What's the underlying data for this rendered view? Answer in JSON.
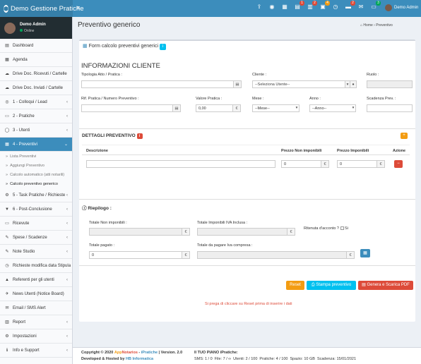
{
  "app": {
    "brand": "Demo Gestione Pratiche",
    "logo": "hexagon-logo-icon"
  },
  "topbar": {
    "icons": [
      {
        "name": "upload-icon",
        "glyph": "⇪",
        "badge": "",
        "color": ""
      },
      {
        "name": "eye-icon",
        "glyph": "◉",
        "badge": "",
        "color": ""
      },
      {
        "name": "calendar-icon",
        "glyph": "▦",
        "badge": "",
        "color": ""
      },
      {
        "name": "clipboard-icon",
        "glyph": "▤",
        "badge": "1",
        "color": "#dd4b39"
      },
      {
        "name": "notes-icon",
        "glyph": "▥",
        "badge": "2",
        "color": "#dd4b39"
      },
      {
        "name": "calendar-check-icon",
        "glyph": "▣",
        "badge": "4",
        "color": "#f39c12"
      },
      {
        "name": "clock-icon",
        "glyph": "◷",
        "badge": "",
        "color": ""
      },
      {
        "name": "folder-icon",
        "glyph": "▬",
        "badge": "2",
        "color": "#dd4b39"
      },
      {
        "name": "envelope-icon",
        "glyph": "✉",
        "badge": "",
        "color": ""
      },
      {
        "name": "chat-icon",
        "glyph": "▭",
        "badge": "3",
        "color": "#00a65a"
      }
    ],
    "user": "Demo Admin"
  },
  "sidebar": {
    "user": {
      "name": "Demo Admin",
      "status": "Online"
    },
    "items": [
      {
        "label": "Dashboard",
        "icon": "▤",
        "chev": ""
      },
      {
        "label": "Agenda",
        "icon": "▦",
        "chev": ""
      },
      {
        "label": "Drive Doc. Ricevuti / Cartelle",
        "icon": "☁",
        "chev": ""
      },
      {
        "label": "Drive Doc. Inviati / Cartelle",
        "icon": "☁",
        "chev": ""
      },
      {
        "label": "1 - Colloqui / Lead",
        "icon": "◎",
        "chev": "‹"
      },
      {
        "label": "2 - Pratiche",
        "icon": "▭",
        "chev": "‹"
      },
      {
        "label": "3 - Utenti",
        "icon": "◯",
        "chev": "‹"
      },
      {
        "label": "4 - Preventivi",
        "icon": "▦",
        "chev": "⌄",
        "active": true
      }
    ],
    "subitems": [
      {
        "label": "Lista Preventivi",
        "current": false
      },
      {
        "label": "Aggiungi Preventivo",
        "current": false
      },
      {
        "label": "Calcolo automatico (atti notarili)",
        "current": false
      },
      {
        "label": "Calcolo preventivo generico",
        "current": true
      }
    ],
    "items2": [
      {
        "label": "5 - Task Pratiche / Richieste",
        "icon": "⚙",
        "chev": "‹"
      },
      {
        "label": "6 - Post-Conclusione",
        "icon": "▼",
        "chev": "‹"
      },
      {
        "label": "Ricevute",
        "icon": "▭",
        "chev": "‹"
      },
      {
        "label": "Spese / Scadenze",
        "icon": "✎",
        "chev": "‹"
      },
      {
        "label": "Note Studio",
        "icon": "✎",
        "chev": "‹"
      },
      {
        "label": "Richieste modifica data Stipula",
        "icon": "◷",
        "chev": ""
      },
      {
        "label": "Referenti per gli utenti",
        "icon": "▲",
        "chev": "‹"
      },
      {
        "label": "News Utenti (Notice Board)",
        "icon": "✈",
        "chev": ""
      },
      {
        "label": "Email / SMS Alert",
        "icon": "✉",
        "chev": ""
      },
      {
        "label": "Report",
        "icon": "▥",
        "chev": "‹"
      },
      {
        "label": "Impostazioni",
        "icon": "⚙",
        "chev": "‹"
      },
      {
        "label": "Info e Support",
        "icon": "ℹ",
        "chev": "‹"
      }
    ]
  },
  "header": {
    "title": "Preventivo generico",
    "crumb_home": "Home",
    "crumb_sep": "›",
    "crumb_current": "Preventivo"
  },
  "form": {
    "box_title": "Form calcolo preventivi generici",
    "section_title": "INFORMAZIONI CLIENTE",
    "tipologia_label": "Tipologia Atto / Pratica :",
    "cliente_label": "Cliente :",
    "cliente_placeholder": "--Seleziona Utente--",
    "ruolo_label": "Ruolo :",
    "rif_label": "Rif. Pratica / Numero Preventivo :",
    "valore_label": "Valore Pratica :",
    "valore_value": "0,00",
    "currency": "€",
    "mese_label": "Mese :",
    "mese_value": "--Mese--",
    "anno_label": "Anno :",
    "anno_value": "--Anno--",
    "scadenza_label": "Scadenza Prev. :"
  },
  "dettagli": {
    "title": "DETTAGLI PREVENTIVO",
    "badge": "i",
    "col_desc": "Descrizione",
    "col_non": "Prezzo Non imponibili",
    "col_imp": "Prezzo Imponibili",
    "col_az": "Azione",
    "non_value": "0",
    "imp_value": "0"
  },
  "riepilogo": {
    "title": "Riepilogo :",
    "tot_non_label": "Totale Non imponibili :",
    "tot_imp_label": "Totale Imponibili IVA Inclusa :",
    "ritenuta_label": "Ritenuta d'acconto ?",
    "ritenuta_si": "Si",
    "pagato_label": "Totale pagato :",
    "pagato_value": "0",
    "da_pagare_label": "Totale da pagare Iva compresa :"
  },
  "actions": {
    "reset": "Reset",
    "stampa": "Stampa preventivo",
    "genera": "Genera e Scarica PDF",
    "note": "Si prega di cliccare su Reset prima di inserire i dati"
  },
  "footer": {
    "copyright_prefix": "Copyright © 2020",
    "brand_app": "App",
    "brand_notarios": "Notarios",
    "brand_sep": " - ",
    "brand_ipratiche": "iPratiche",
    "version": "| Version. 2.0",
    "developed": "Developed & Hosted by",
    "dev_brand": "HB Informatica",
    "plan": "Il TUO PIANO iPratiche:",
    "stats": [
      "SMS: 1 / 0",
      "File: 7 / ∞",
      "Utenti: 2 / 100",
      "Pratiche: 4 / 100",
      "Spazio: 10 GB",
      "Scadenza: 15/01/2021"
    ]
  },
  "colors": {
    "primary": "#3c8dbc",
    "danger": "#dd4b39",
    "warning": "#f39c12",
    "info": "#00c0ef"
  }
}
